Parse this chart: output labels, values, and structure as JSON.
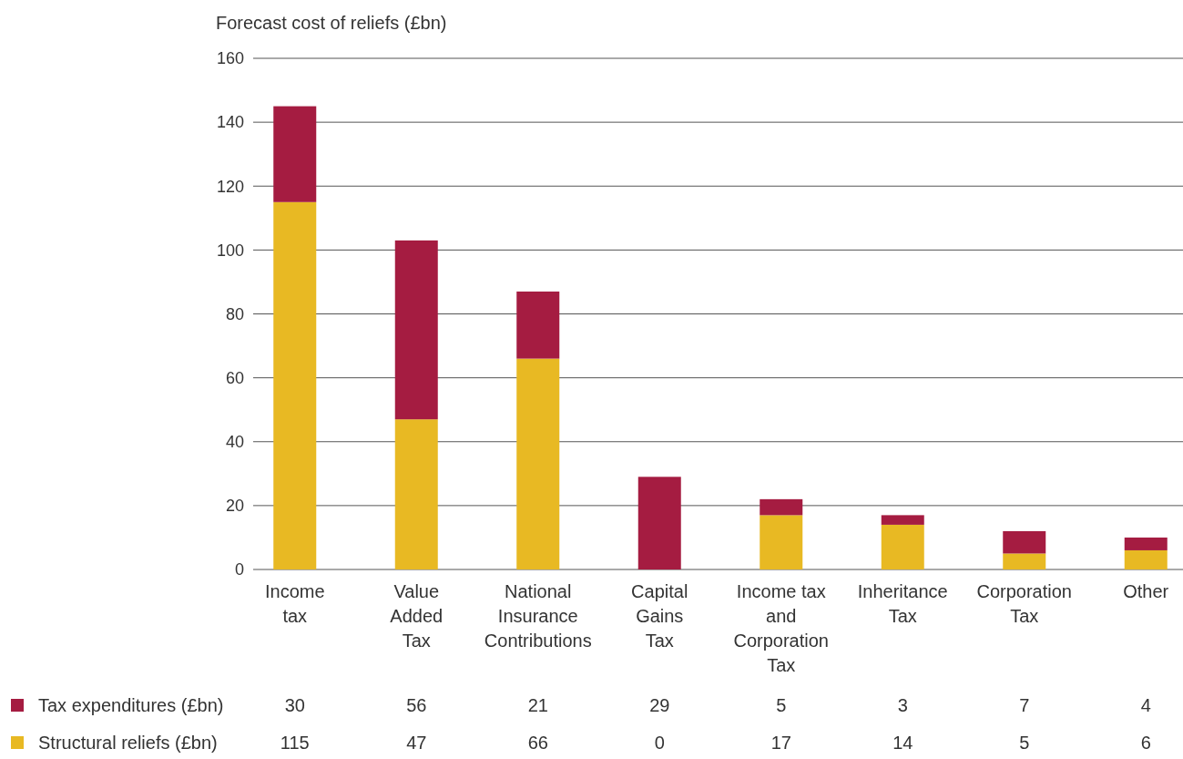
{
  "chart_data": {
    "type": "bar",
    "stacked": true,
    "ylabel": "Forecast cost of reliefs (£bn)",
    "categories": [
      "Income\ntax",
      "Value\nAdded\nTax",
      "National\nInsurance\nContributions",
      "Capital\nGains\nTax",
      "Income tax\nand\nCorporation\nTax",
      "Inheritance\nTax",
      "Corporation\nTax",
      "Other"
    ],
    "series": [
      {
        "name": "Structural reliefs (£bn)",
        "color": "#e8b923",
        "values": [
          115,
          47,
          66,
          0,
          17,
          14,
          5,
          6
        ]
      },
      {
        "name": "Tax expenditures (£bn)",
        "color": "#a51c41",
        "values": [
          30,
          56,
          21,
          29,
          5,
          3,
          7,
          4
        ]
      }
    ],
    "ylim": [
      0,
      160
    ],
    "yticks": [
      0,
      20,
      40,
      60,
      80,
      100,
      120,
      140,
      160
    ],
    "grid": "y",
    "legend": "bottom",
    "data_labels": true
  }
}
